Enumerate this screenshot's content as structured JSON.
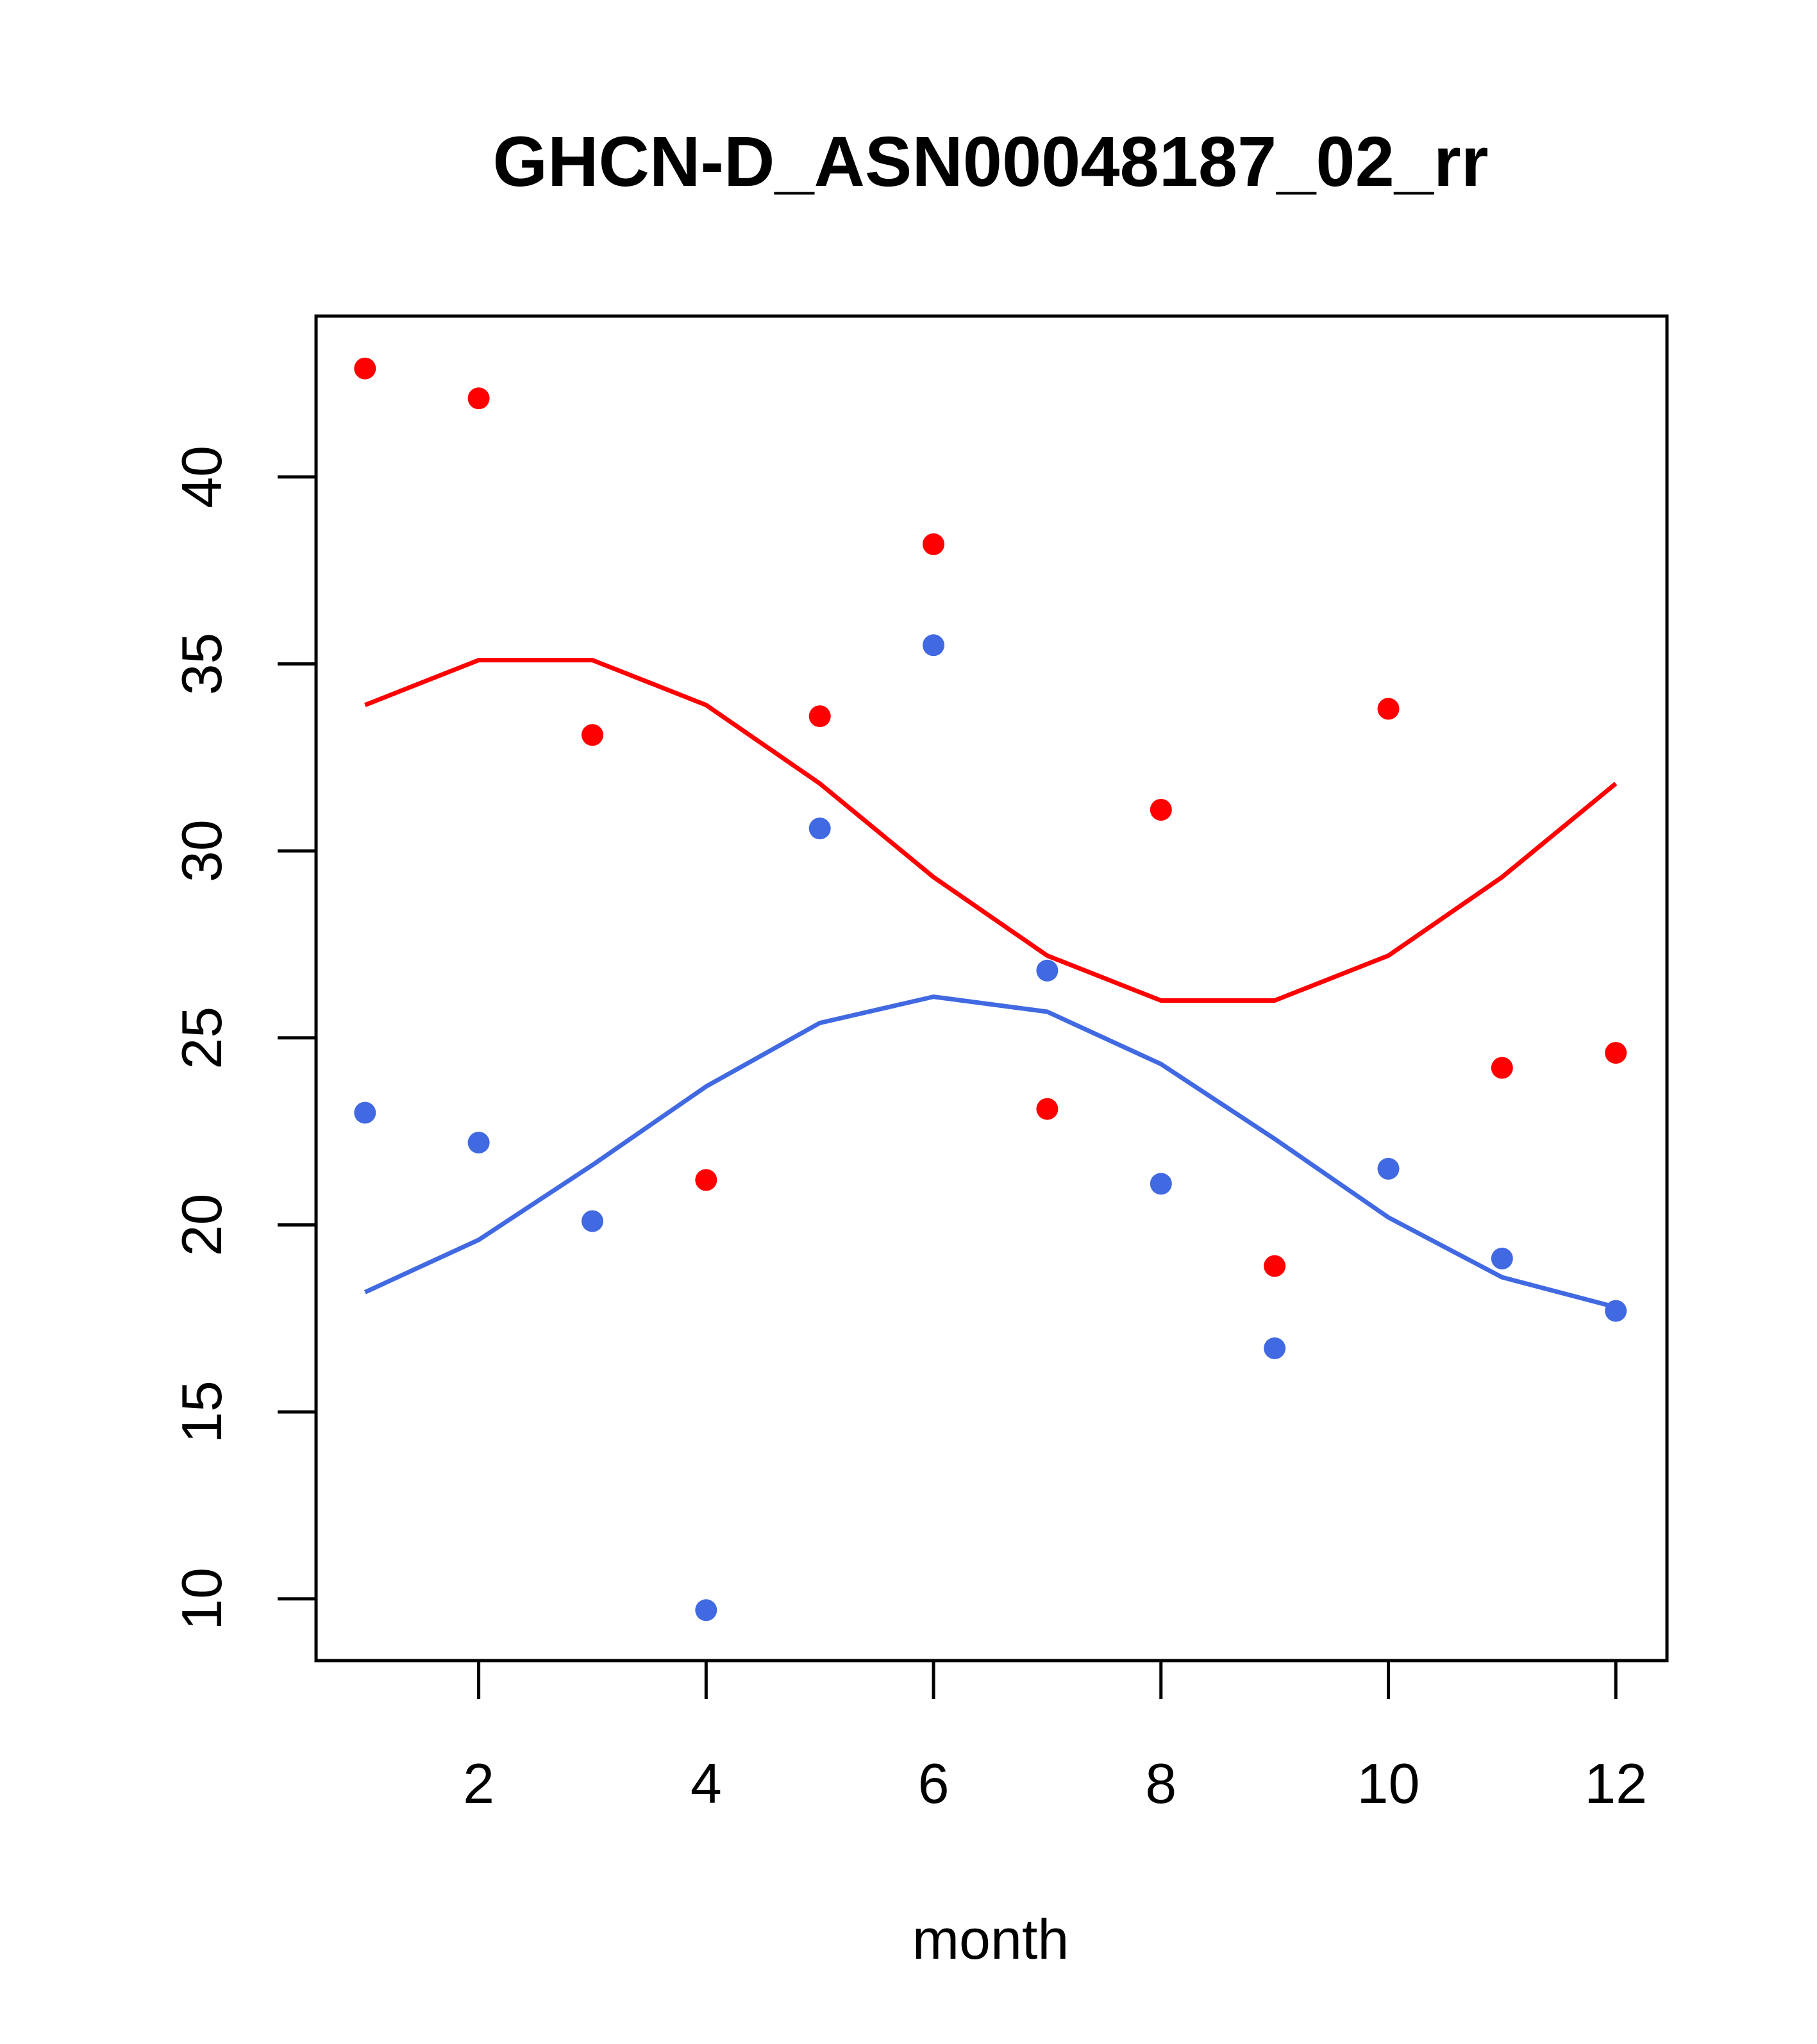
{
  "chart_data": {
    "type": "scatter",
    "title": "GHCN-D_ASN00048187_02_rr",
    "xlabel": "month",
    "ylabel": "",
    "xlim": [
      0.57,
      12.45
    ],
    "ylim": [
      8.35,
      44.3
    ],
    "xticks": [
      2,
      4,
      6,
      8,
      10,
      12
    ],
    "yticks": [
      10,
      15,
      20,
      25,
      30,
      35,
      40
    ],
    "grid": false,
    "legend": "none",
    "series": [
      {
        "color": "#FF0000",
        "points_x": [
          1,
          2,
          3,
          4,
          5,
          6,
          7,
          8,
          9,
          10,
          11,
          12
        ],
        "points_y": [
          42.9,
          42.1,
          33.1,
          21.2,
          33.6,
          38.2,
          23.1,
          31.1,
          18.9,
          33.8,
          24.2,
          24.6
        ],
        "line_x": [
          1,
          2,
          3,
          4,
          5,
          6,
          7,
          8,
          9,
          10,
          11,
          12
        ],
        "line_y": [
          33.9,
          35.1,
          35.1,
          33.9,
          31.8,
          29.3,
          27.2,
          26.0,
          26.0,
          27.2,
          29.3,
          31.8
        ]
      },
      {
        "color": "#4169E1",
        "points_x": [
          1,
          2,
          3,
          4,
          5,
          6,
          7,
          8,
          9,
          10,
          11,
          12
        ],
        "points_y": [
          23.0,
          22.2,
          20.1,
          9.7,
          30.6,
          35.5,
          26.8,
          21.1,
          16.7,
          21.5,
          19.1,
          17.7
        ],
        "line_x": [
          1,
          2,
          3,
          4,
          5,
          6,
          7,
          8,
          9,
          10,
          11,
          12
        ],
        "line_y": [
          18.2,
          19.6,
          21.6,
          23.7,
          25.4,
          26.1,
          25.7,
          24.3,
          22.3,
          20.2,
          18.6,
          17.8
        ]
      }
    ]
  }
}
